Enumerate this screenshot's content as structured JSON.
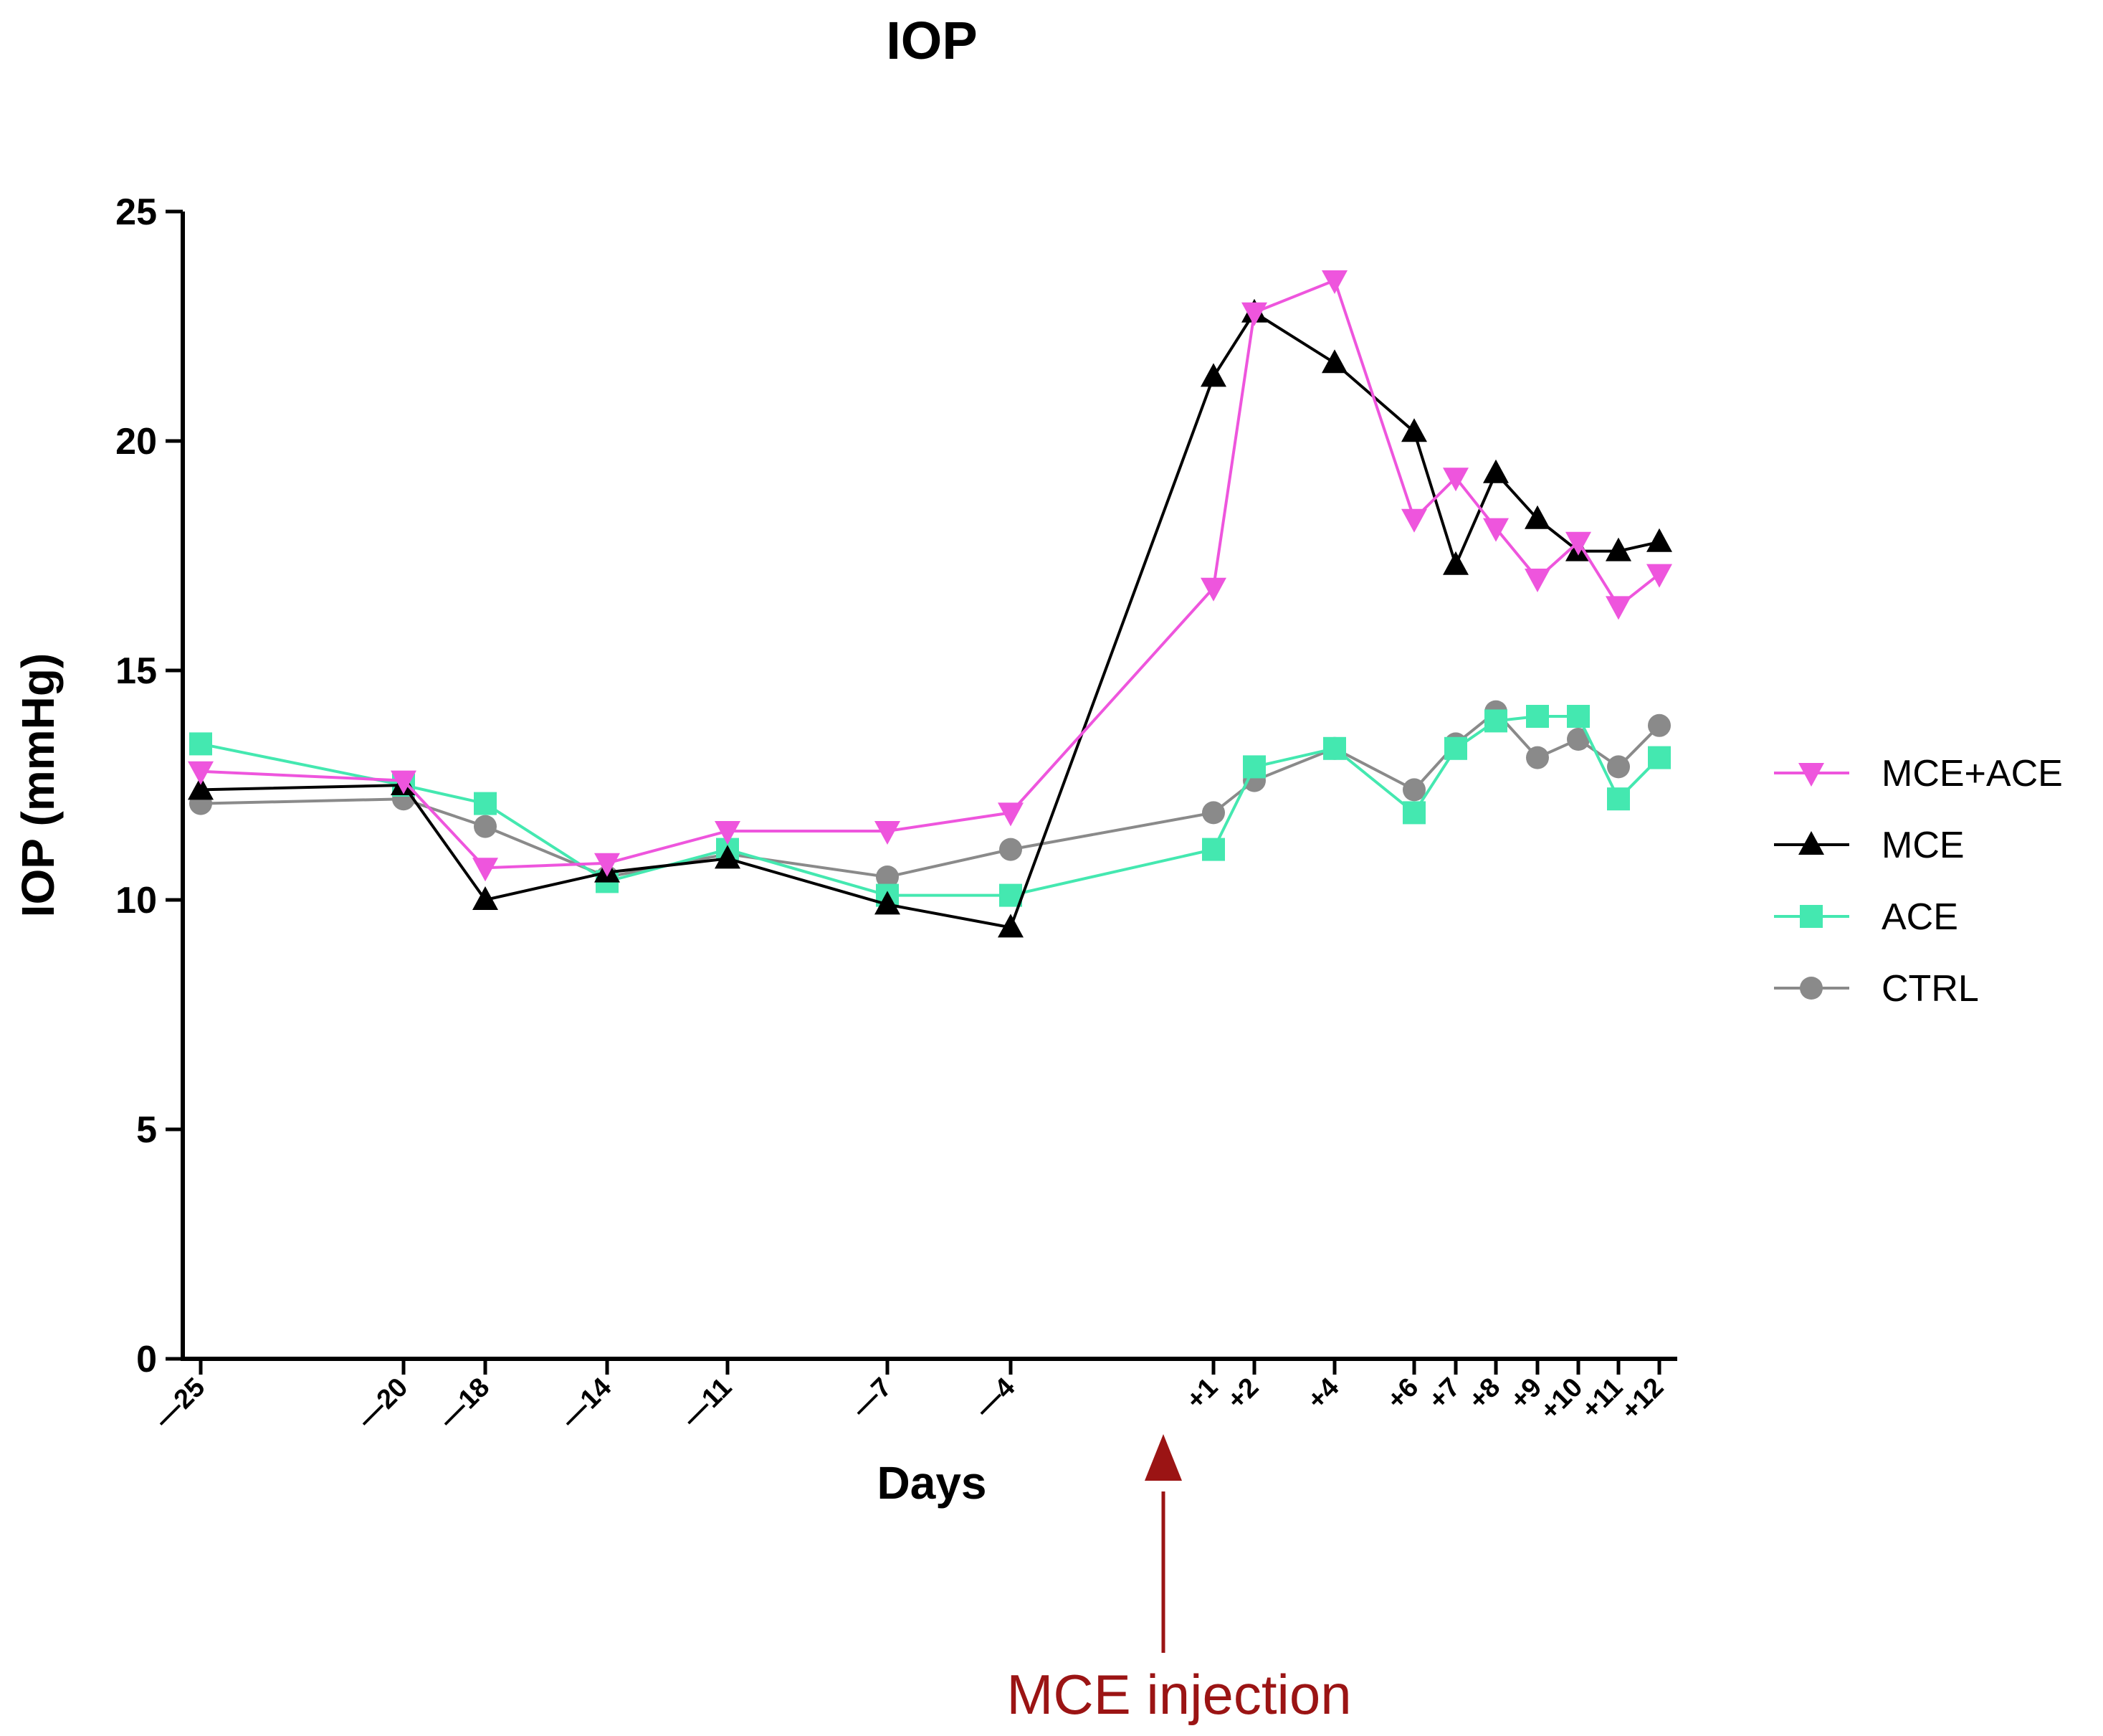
{
  "colors": {
    "MCE+ACE": "#ee55dd",
    "MCE": "#000000",
    "ACE": "#44e8b0",
    "CTRL": "#8a8a8a",
    "annotation": "#9b1414"
  },
  "chart_data": {
    "type": "line",
    "title": "IOP",
    "xlabel": "Days",
    "ylabel": "IOP (mmHg)",
    "ylim": [
      0,
      25
    ],
    "yticks": [
      0,
      5,
      10,
      15,
      20,
      25
    ],
    "x": [
      -25,
      -20,
      -18,
      -14,
      -11,
      -7,
      -4,
      1,
      2,
      4,
      6,
      7,
      8,
      9,
      10,
      11,
      12
    ],
    "xtick_labels": [
      "—25",
      "—20",
      "—18",
      "—14",
      "—11",
      "—7",
      "—4",
      "+1",
      "+2",
      "+4",
      "+6",
      "+7",
      "+8",
      "+9",
      "+10",
      "+11",
      "+12"
    ],
    "grid": false,
    "legend_position": "right",
    "series": [
      {
        "name": "MCE+ACE",
        "marker": "triangle-down",
        "values": [
          12.8,
          12.6,
          10.7,
          10.8,
          11.5,
          11.5,
          11.9,
          16.8,
          22.8,
          23.5,
          18.3,
          19.2,
          18.1,
          17.0,
          17.8,
          16.4,
          17.1
        ]
      },
      {
        "name": "MCE",
        "marker": "triangle-up",
        "values": [
          12.4,
          12.5,
          10.0,
          10.6,
          10.9,
          9.9,
          9.4,
          21.4,
          22.8,
          21.7,
          20.2,
          17.3,
          19.3,
          18.3,
          17.6,
          17.6,
          17.8
        ]
      },
      {
        "name": "ACE",
        "marker": "square",
        "values": [
          13.4,
          12.5,
          12.1,
          10.4,
          11.1,
          10.1,
          10.1,
          11.1,
          12.9,
          13.3,
          11.9,
          13.3,
          13.9,
          14.0,
          14.0,
          12.2,
          13.1
        ]
      },
      {
        "name": "CTRL",
        "marker": "circle",
        "values": [
          12.1,
          12.2,
          11.6,
          10.5,
          11.0,
          10.5,
          11.1,
          11.9,
          12.6,
          13.3,
          12.4,
          13.4,
          14.1,
          13.1,
          13.5,
          12.9,
          13.8
        ]
      }
    ],
    "annotation": {
      "text": "MCE injection",
      "points_to": "x-axis between —4 and +1"
    }
  }
}
